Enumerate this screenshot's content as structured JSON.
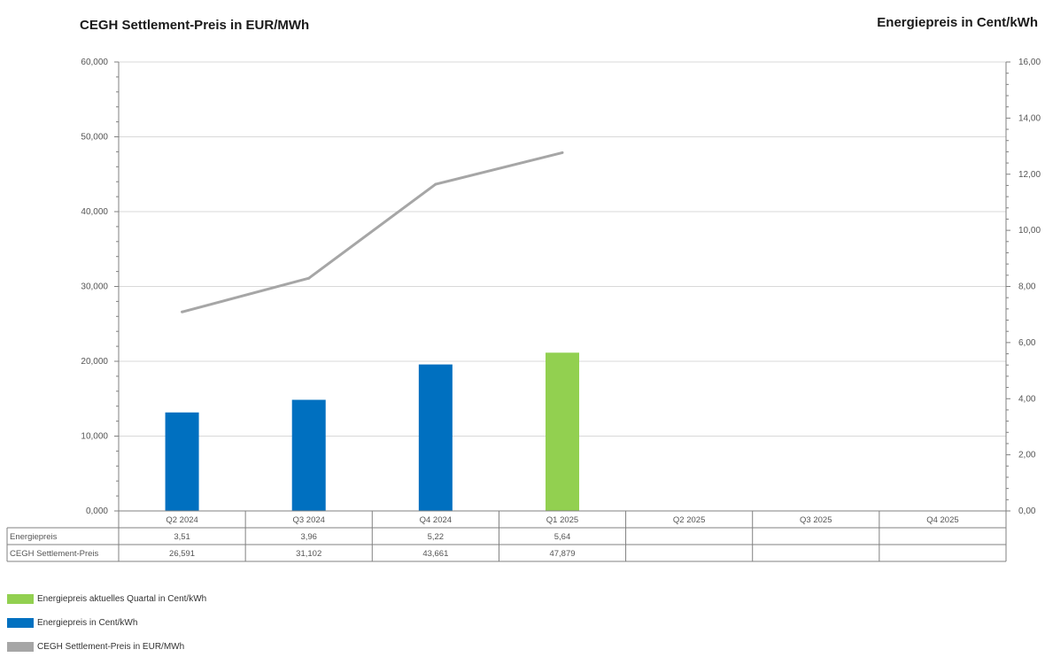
{
  "chart_data": {
    "type": "bar",
    "title_left": "CEGH Settlement-Preis in EUR/MWh",
    "title_right": "Energiepreis in Cent/kWh",
    "categories": [
      "Q2 2024",
      "Q3 2024",
      "Q4 2024",
      "Q1 2025",
      "Q2 2025",
      "Q3 2025",
      "Q4 2025"
    ],
    "series": [
      {
        "name": "Energiepreis",
        "kind": "bar",
        "axis": "right",
        "values": [
          3.51,
          3.96,
          5.22,
          5.64,
          null,
          null,
          null
        ],
        "labels": [
          "3,51",
          "3,96",
          "5,22",
          "5,64",
          "",
          "",
          ""
        ],
        "colors": [
          "#0070c0",
          "#0070c0",
          "#0070c0",
          "#92d050",
          null,
          null,
          null
        ]
      },
      {
        "name": "CEGH Settlement-Preis",
        "kind": "line",
        "axis": "left",
        "color": "#a6a6a6",
        "values": [
          26.591,
          31.102,
          43.661,
          47.879,
          null,
          null,
          null
        ],
        "labels": [
          "26,591",
          "31,102",
          "43,661",
          "47,879",
          "",
          "",
          ""
        ]
      }
    ],
    "left_axis": {
      "ylim": [
        0,
        60
      ],
      "ticks": [
        0,
        10,
        20,
        30,
        40,
        50,
        60
      ],
      "tick_labels": [
        "0,000",
        "10,000",
        "20,000",
        "30,000",
        "40,000",
        "50,000",
        "60,000"
      ]
    },
    "right_axis": {
      "ylim": [
        0,
        16
      ],
      "ticks": [
        0,
        2,
        4,
        6,
        8,
        10,
        12,
        14,
        16
      ],
      "tick_labels": [
        "0,00",
        "2,00",
        "4,00",
        "6,00",
        "8,00",
        "10,00",
        "12,00",
        "14,00",
        "16,00"
      ]
    },
    "grid": true,
    "legend_position": "bottom-left"
  },
  "legend": [
    {
      "label": "Energiepreis aktuelles Quartal in Cent/kWh",
      "color": "#92d050"
    },
    {
      "label": "Energiepreis in Cent/kWh",
      "color": "#0070c0"
    },
    {
      "label": "CEGH Settlement-Preis in EUR/MWh",
      "color": "#a6a6a6"
    }
  ]
}
